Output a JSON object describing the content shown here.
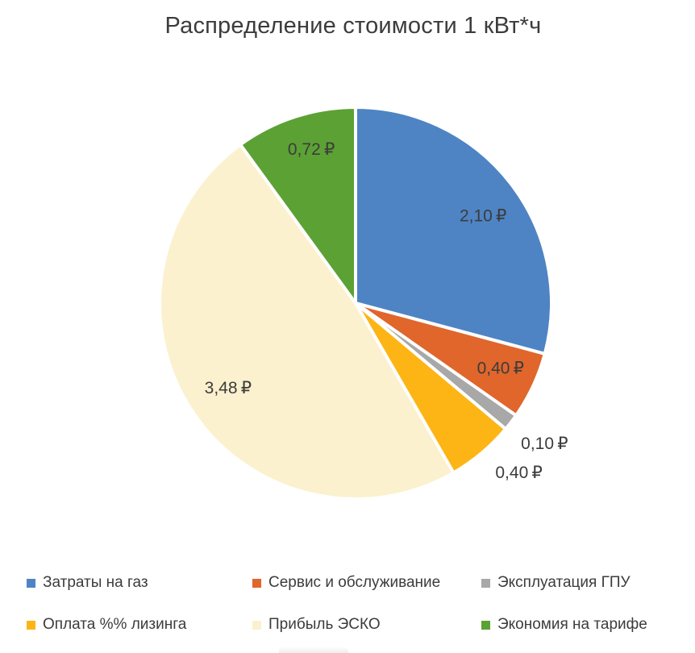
{
  "title": "Распределение стоимости 1 кВт*ч",
  "chart_data": {
    "type": "pie",
    "title": "Распределение стоимости 1 кВт*ч",
    "unit": "₽",
    "total": 7.2,
    "start_angle_deg": 0,
    "direction": "clockwise",
    "legend_position": "bottom",
    "legend_rows": 2,
    "legend_columns": 3,
    "slices": [
      {
        "legend_label": "Затраты на газ",
        "value": 2.1,
        "value_label": "2,10 ₽",
        "color": "#4E84C4",
        "label_inside": true
      },
      {
        "legend_label": "Сервис и обслуживание",
        "value": 0.4,
        "value_label": "0,40 ₽",
        "color": "#E0662B",
        "label_inside": true
      },
      {
        "legend_label": "Эксплуатация ГПУ",
        "value": 0.1,
        "value_label": "0,10 ₽",
        "color": "#A8A8A8",
        "label_inside": false
      },
      {
        "legend_label": "Оплата %% лизинга",
        "value": 0.4,
        "value_label": "0,40 ₽",
        "color": "#FDB515",
        "label_inside": false
      },
      {
        "legend_label": "Прибыль ЭСКО",
        "value": 3.48,
        "value_label": "3,48 ₽",
        "color": "#FBF1CE",
        "label_inside": true
      },
      {
        "legend_label": "Экономия на тарифе",
        "value": 0.72,
        "value_label": "0,72 ₽",
        "color": "#5CA134",
        "label_inside": true
      }
    ]
  },
  "colors": {
    "background": "#FFFFFF",
    "slice_border": "#FFFFFF",
    "title_text": "#3C3C3C",
    "label_text": "#3C3C3C",
    "legend_text": "#3C3C3C"
  }
}
